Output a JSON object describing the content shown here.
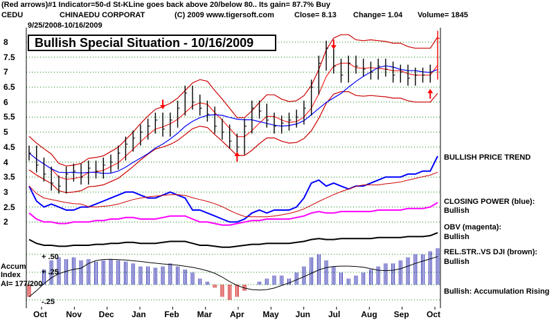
{
  "header": {
    "line1": "(Red arrows)#1 Indicator=50-d St-KLine goes back above 20/below 80..  Its gain= 87.7% Buy",
    "ticker": "CEDU",
    "company": "CHINAEDU CORPORAT",
    "copyright": "(C) 2009 www.tigersoft.com",
    "close_label": "Close=  8.13",
    "change_label": "Change= 1.04",
    "volume_label": "Volume= 1845",
    "date_range": "9/25/2008-10/16/2009"
  },
  "title": "Bullish Special Situation - 10/16/2009",
  "side_labels": [
    "BULLISH PRICE TREND",
    "CLOSING POWER (blue):",
    "Bullish",
    "OBV (magenta):",
    "Bullish",
    "REL.STR..VS DJI (brown):",
    "Bullish",
    "Bullish: Accumulation Rising"
  ],
  "indicator_label": {
    "line1": "Accum",
    "line2": "Index",
    "line3": "AI= 177/200"
  },
  "accum_ticks": [
    "+ .50",
    "+ .25",
    "-.25"
  ],
  "colors": {
    "price_bars": "#000000",
    "ma_short": "#ff0000",
    "ma_long": "#0000ff",
    "bands": "#cc0000",
    "closing_power": "#0000ff",
    "obv": "#ff00ff",
    "rel_strength": "#000000",
    "accum_bars": "#2b2bb0",
    "accum_neg": "#cc0000",
    "grid": "#008000"
  },
  "chart_data": {
    "type": "line",
    "title": "Bullish Special Situation - 10/16/2009",
    "xlabel": "",
    "ylabel": "",
    "x_ticks": [
      "Oct",
      "Nov",
      "Dec",
      "Jan",
      "Feb",
      "Mar",
      "Apr",
      "May",
      "Jun",
      "Jul",
      "Aug",
      "Sep",
      "Oct"
    ],
    "y_ticks": [
      "8",
      "7.5",
      "7",
      "6.5",
      "6",
      "5.5",
      "5",
      "4.5",
      "4",
      "3.5",
      "3",
      "2.5",
      "2"
    ],
    "ylim": [
      1.8,
      8.5
    ],
    "grid": true,
    "price_weekly": [
      [
        0,
        4.3
      ],
      [
        1,
        3.9
      ],
      [
        2,
        3.6
      ],
      [
        3,
        3.3
      ],
      [
        4,
        3.2
      ],
      [
        5,
        3.6
      ],
      [
        6,
        3.7
      ],
      [
        7,
        3.5
      ],
      [
        8,
        3.8
      ],
      [
        9,
        3.7
      ],
      [
        10,
        3.9
      ],
      [
        11,
        4.0
      ],
      [
        12,
        4.3
      ],
      [
        13,
        4.6
      ],
      [
        14,
        4.8
      ],
      [
        15,
        5.0
      ],
      [
        16,
        5.2
      ],
      [
        17,
        5.4
      ],
      [
        18,
        5.1
      ],
      [
        19,
        5.4
      ],
      [
        20,
        5.8
      ],
      [
        21,
        6.3
      ],
      [
        22,
        6.0
      ],
      [
        23,
        5.8
      ],
      [
        24,
        5.6
      ],
      [
        25,
        5.2
      ],
      [
        26,
        5.0
      ],
      [
        27,
        4.7
      ],
      [
        28,
        4.5
      ],
      [
        29,
        5.2
      ],
      [
        30,
        5.8
      ],
      [
        31,
        5.7
      ],
      [
        32,
        5.4
      ],
      [
        33,
        5.2
      ],
      [
        34,
        5.3
      ],
      [
        35,
        5.4
      ],
      [
        36,
        5.5
      ],
      [
        37,
        5.8
      ],
      [
        38,
        6.5
      ],
      [
        39,
        7.3
      ],
      [
        40,
        7.8
      ],
      [
        41,
        7.2
      ],
      [
        42,
        6.9
      ],
      [
        43,
        7.3
      ],
      [
        44,
        7.2
      ],
      [
        45,
        7.1
      ],
      [
        46,
        7.0
      ],
      [
        47,
        7.2
      ],
      [
        48,
        7.1
      ],
      [
        49,
        6.9
      ],
      [
        50,
        7.0
      ],
      [
        51,
        6.8
      ],
      [
        52,
        6.9
      ],
      [
        53,
        6.9
      ],
      [
        54,
        7.0
      ],
      [
        55,
        8.13
      ]
    ],
    "arrows": [
      {
        "week": 18,
        "value": 5.9,
        "direction": "down"
      },
      {
        "week": 28,
        "value": 4.2,
        "direction": "up"
      },
      {
        "week": 41,
        "value": 7.9,
        "direction": "down"
      },
      {
        "week": 54,
        "value": 6.3,
        "direction": "up"
      }
    ],
    "closing_power": [
      3.2,
      2.7,
      2.5,
      2.6,
      2.5,
      2.4,
      2.4,
      2.5,
      2.5,
      2.6,
      2.7,
      2.8,
      2.9,
      3.0,
      3.0,
      2.9,
      2.8,
      2.8,
      2.9,
      3.0,
      2.9,
      2.8,
      2.4,
      2.4,
      2.3,
      2.2,
      2.1,
      2.0,
      2.0,
      2.1,
      2.3,
      2.4,
      2.3,
      2.4,
      2.4,
      2.4,
      2.5,
      2.8,
      3.3,
      3.4,
      3.2,
      3.3,
      3.2,
      3.1,
      3.2,
      3.2,
      3.3,
      3.4,
      3.5,
      3.5,
      3.5,
      3.6,
      3.6,
      3.7,
      3.7,
      4.2
    ],
    "obv": [
      2.3,
      2.1,
      2.0,
      2.0,
      1.95,
      1.95,
      2.0,
      2.0,
      2.0,
      2.05,
      2.05,
      2.1,
      2.1,
      2.15,
      2.15,
      2.1,
      2.1,
      2.1,
      2.15,
      2.2,
      2.2,
      2.2,
      2.1,
      2.0,
      2.0,
      1.95,
      1.9,
      1.9,
      1.95,
      2.0,
      2.05,
      2.05,
      2.1,
      2.1,
      2.1,
      2.1,
      2.15,
      2.2,
      2.3,
      2.35,
      2.3,
      2.3,
      2.35,
      2.35,
      2.35,
      2.35,
      2.35,
      2.4,
      2.4,
      2.4,
      2.4,
      2.45,
      2.45,
      2.45,
      2.5,
      2.65
    ],
    "accum_index": [
      -0.2,
      0.0,
      0.25,
      0.4,
      0.45,
      0.42,
      0.45,
      0.4,
      0.42,
      0.38,
      0.4,
      0.42,
      0.4,
      0.38,
      0.35,
      0.3,
      0.3,
      0.28,
      0.3,
      0.35,
      0.3,
      0.25,
      0.2,
      0.1,
      0.05,
      -0.05,
      -0.2,
      -0.25,
      -0.2,
      -0.1,
      0.0,
      0.05,
      0.1,
      0.15,
      0.15,
      0.1,
      0.2,
      0.3,
      0.45,
      0.5,
      0.4,
      0.3,
      0.2,
      0.1,
      0.15,
      0.2,
      0.25,
      0.3,
      0.35,
      0.35,
      0.4,
      0.45,
      0.5,
      0.5,
      0.55,
      0.6
    ]
  }
}
